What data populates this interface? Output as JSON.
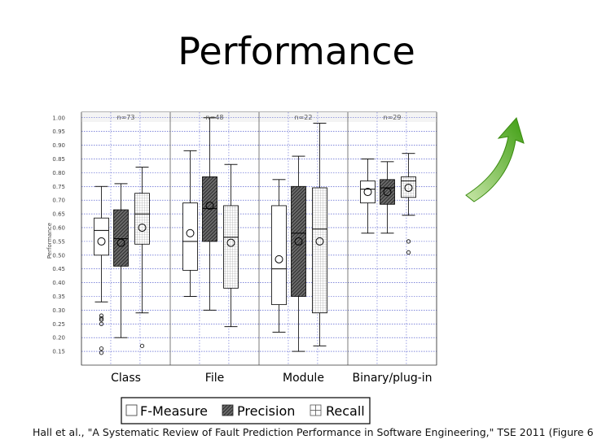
{
  "slide": {
    "title": "Performance",
    "citation": "Hall et al., \"A Systematic Review of Fault Prediction Performance in Software Engineering,\" TSE 2011 (Figure 6)"
  },
  "colors": {
    "arrow": "#4caf1a",
    "grid": "#3a44c6",
    "text": "#000000"
  },
  "icons": {
    "trend": "green-up-arrow-icon"
  },
  "chart_data": {
    "type": "boxplot",
    "title": "",
    "ylabel": "Performance",
    "ylim": [
      0.1,
      1.02
    ],
    "yticks": [
      0.15,
      0.2,
      0.25,
      0.3,
      0.35,
      0.4,
      0.45,
      0.5,
      0.55,
      0.6,
      0.65,
      0.7,
      0.75,
      0.8,
      0.85,
      0.9,
      0.95,
      1.0
    ],
    "grid": true,
    "legend": {
      "placement": "bottom",
      "entries": [
        "F-Measure",
        "Precision",
        "Recall"
      ]
    },
    "groups": [
      {
        "label": "Class",
        "n": "n=73",
        "boxes": [
          {
            "series": "F-Measure",
            "whisker_low": 0.33,
            "q1": 0.5,
            "median": 0.59,
            "q3": 0.635,
            "whisker_high": 0.75,
            "mean": 0.55,
            "outliers": [
              0.28,
              0.27,
              0.265,
              0.25,
              0.16,
              0.145
            ]
          },
          {
            "series": "Precision",
            "whisker_low": 0.2,
            "q1": 0.46,
            "median": 0.56,
            "q3": 0.665,
            "whisker_high": 0.76,
            "mean": 0.545,
            "outliers": []
          },
          {
            "series": "Recall",
            "whisker_low": 0.29,
            "q1": 0.54,
            "median": 0.65,
            "q3": 0.725,
            "whisker_high": 0.82,
            "mean": 0.6,
            "outliers": [
              0.17
            ]
          }
        ]
      },
      {
        "label": "File",
        "n": "n=48",
        "boxes": [
          {
            "series": "F-Measure",
            "whisker_low": 0.35,
            "q1": 0.445,
            "median": 0.55,
            "q3": 0.69,
            "whisker_high": 0.88,
            "mean": 0.58,
            "outliers": []
          },
          {
            "series": "Precision",
            "whisker_low": 0.3,
            "q1": 0.55,
            "median": 0.67,
            "q3": 0.785,
            "whisker_high": 1.0,
            "mean": 0.68,
            "outliers": []
          },
          {
            "series": "Recall",
            "whisker_low": 0.24,
            "q1": 0.38,
            "median": 0.565,
            "q3": 0.68,
            "whisker_high": 0.83,
            "mean": 0.545,
            "outliers": []
          }
        ]
      },
      {
        "label": "Module",
        "n": "n=22",
        "boxes": [
          {
            "series": "F-Measure",
            "whisker_low": 0.22,
            "q1": 0.32,
            "median": 0.45,
            "q3": 0.68,
            "whisker_high": 0.775,
            "mean": 0.485,
            "outliers": []
          },
          {
            "series": "Precision",
            "whisker_low": 0.15,
            "q1": 0.35,
            "median": 0.58,
            "q3": 0.75,
            "whisker_high": 0.86,
            "mean": 0.55,
            "outliers": []
          },
          {
            "series": "Recall",
            "whisker_low": 0.17,
            "q1": 0.29,
            "median": 0.595,
            "q3": 0.745,
            "whisker_high": 0.98,
            "mean": 0.55,
            "outliers": []
          }
        ]
      },
      {
        "label": "Binary/plug-in",
        "n": "n=29",
        "boxes": [
          {
            "series": "F-Measure",
            "whisker_low": 0.58,
            "q1": 0.69,
            "median": 0.74,
            "q3": 0.77,
            "whisker_high": 0.85,
            "mean": 0.73,
            "outliers": []
          },
          {
            "series": "Precision",
            "whisker_low": 0.58,
            "q1": 0.685,
            "median": 0.745,
            "q3": 0.775,
            "whisker_high": 0.84,
            "mean": 0.73,
            "outliers": []
          },
          {
            "series": "Recall",
            "whisker_low": 0.645,
            "q1": 0.71,
            "median": 0.77,
            "q3": 0.785,
            "whisker_high": 0.87,
            "mean": 0.745,
            "outliers": [
              0.55,
              0.51
            ]
          }
        ]
      }
    ]
  }
}
